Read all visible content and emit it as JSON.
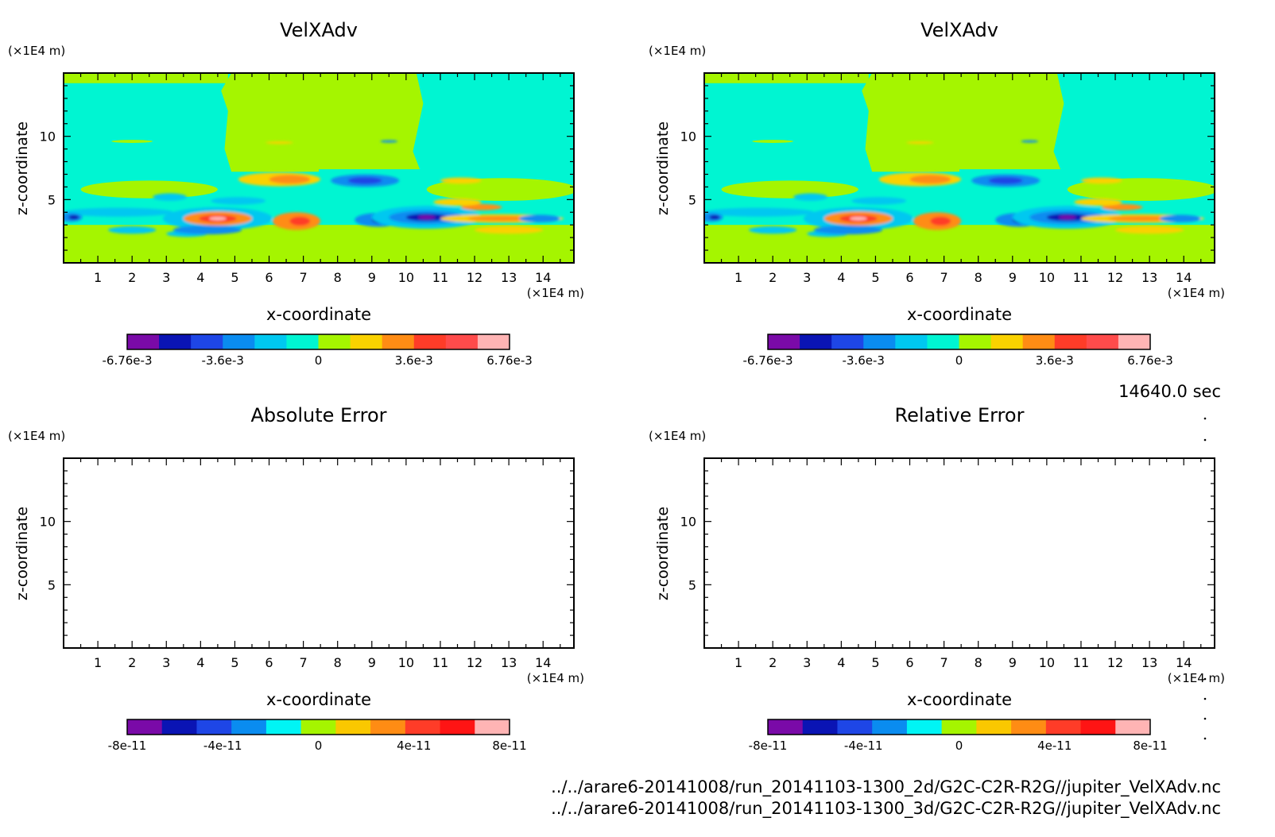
{
  "time_label": "14640.0 sec",
  "files": [
    "../../arare6-20141008/run_20141103-1300_2d/G2C-C2R-R2G//jupiter_VelXAdv.nc",
    "../../arare6-20141008/run_20141103-1300_3d/G2C-C2R-R2G//jupiter_VelXAdv.nc"
  ],
  "chart_data": [
    {
      "type": "heatmap",
      "title": "VelXAdv",
      "xlabel": "x-coordinate",
      "ylabel": "z-coordinate",
      "x_unit": "(×1E4 m)",
      "y_unit": "(×1E4 m)",
      "xlim": [
        0,
        14.9
      ],
      "ylim": [
        0,
        15
      ],
      "x_ticks": [
        "1",
        "2",
        "3",
        "4",
        "5",
        "6",
        "7",
        "8",
        "9",
        "10",
        "11",
        "12",
        "13",
        "14"
      ],
      "y_ticks": [
        "5",
        "10"
      ],
      "colorbar": {
        "levels": 11,
        "colors": [
          "#7a0aa8",
          "#0a14b4",
          "#1e46e6",
          "#0a8cf0",
          "#00c8f0",
          "#00f5d2",
          "#a5f500",
          "#fad200",
          "#ff8c14",
          "#ff3c28",
          "#ff4b4b",
          "#ffb4b4"
        ],
        "tick_labels": [
          "-6.76e-3",
          "-3.6e-3",
          "0",
          "3.6e-3",
          "6.76e-3"
        ]
      }
    },
    {
      "type": "heatmap",
      "title": "VelXAdv",
      "xlabel": "x-coordinate",
      "ylabel": "z-coordinate",
      "x_unit": "(×1E4 m)",
      "y_unit": "(×1E4 m)",
      "xlim": [
        0,
        14.9
      ],
      "ylim": [
        0,
        15
      ],
      "x_ticks": [
        "1",
        "2",
        "3",
        "4",
        "5",
        "6",
        "7",
        "8",
        "9",
        "10",
        "11",
        "12",
        "13",
        "14"
      ],
      "y_ticks": [
        "5",
        "10"
      ],
      "colorbar": {
        "levels": 11,
        "colors": [
          "#7a0aa8",
          "#0a14b4",
          "#1e46e6",
          "#0a8cf0",
          "#00c8f0",
          "#00f5d2",
          "#a5f500",
          "#fad200",
          "#ff8c14",
          "#ff3c28",
          "#ff4b4b",
          "#ffb4b4"
        ],
        "tick_labels": [
          "-6.76e-3",
          "-3.6e-3",
          "0",
          "3.6e-3",
          "6.76e-3"
        ]
      }
    },
    {
      "type": "heatmap",
      "title": "Absolute Error",
      "xlabel": "x-coordinate",
      "ylabel": "z-coordinate",
      "x_unit": "(×1E4 m)",
      "y_unit": "(×1E4 m)",
      "xlim": [
        0,
        14.9
      ],
      "ylim": [
        0,
        15
      ],
      "x_ticks": [
        "1",
        "2",
        "3",
        "4",
        "5",
        "6",
        "7",
        "8",
        "9",
        "10",
        "11",
        "12",
        "13",
        "14"
      ],
      "y_ticks": [
        "5",
        "10"
      ],
      "colorbar": {
        "levels": 10,
        "colors": [
          "#7a0aa8",
          "#0a14b4",
          "#1e46e6",
          "#0a8cf0",
          "#00f5f5",
          "#a5f500",
          "#fac800",
          "#ff8c14",
          "#ff3c28",
          "#ff1414",
          "#ffb4b4"
        ],
        "tick_labels": [
          "-8e-11",
          "-4e-11",
          "0",
          "4e-11",
          "8e-11"
        ]
      }
    },
    {
      "type": "heatmap",
      "title": "Relative Error",
      "xlabel": "x-coordinate",
      "ylabel": "z-coordinate",
      "x_unit": "(×1E4 m)",
      "y_unit": "(×1E4 m)",
      "xlim": [
        0,
        14.9
      ],
      "ylim": [
        0,
        15
      ],
      "x_ticks": [
        "1",
        "2",
        "3",
        "4",
        "5",
        "6",
        "7",
        "8",
        "9",
        "10",
        "11",
        "12",
        "13",
        "14"
      ],
      "y_ticks": [
        "5",
        "10"
      ],
      "colorbar": {
        "levels": 10,
        "colors": [
          "#7a0aa8",
          "#0a14b4",
          "#1e46e6",
          "#0a8cf0",
          "#00f5f5",
          "#a5f500",
          "#fac800",
          "#ff8c14",
          "#ff3c28",
          "#ff1414",
          "#ffb4b4"
        ],
        "tick_labels": [
          "-8e-11",
          "-4e-11",
          "0",
          "4e-11",
          "8e-11"
        ]
      }
    }
  ]
}
